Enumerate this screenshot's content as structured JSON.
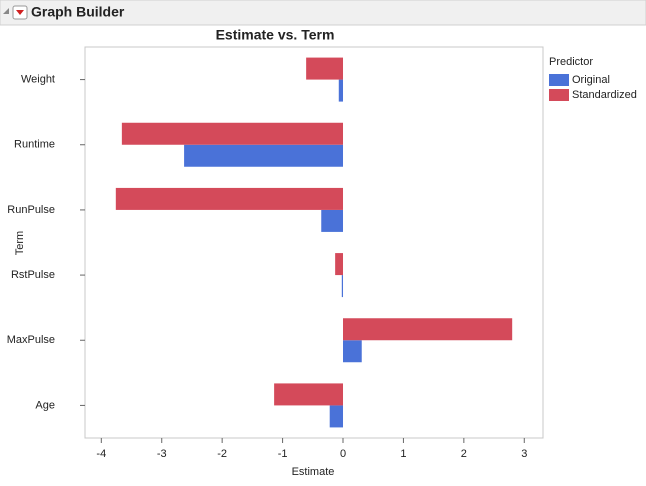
{
  "header": "Graph Builder",
  "chart_data": {
    "type": "bar",
    "orientation": "horizontal",
    "title": "Estimate vs. Term",
    "x_label": "Estimate",
    "y_label": "Term",
    "legend_title": "Predictor",
    "categories": [
      "Weight",
      "Runtime",
      "RunPulse",
      "RstPulse",
      "MaxPulse",
      "Age"
    ],
    "series": [
      {
        "name": "Original",
        "color": "#4a72d8",
        "values": [
          -0.07,
          -2.63,
          -0.36,
          -0.02,
          0.31,
          -0.22
        ]
      },
      {
        "name": "Standardized",
        "color": "#d44a5a",
        "values": [
          -0.61,
          -3.66,
          -3.76,
          -0.13,
          2.8,
          -1.14
        ]
      }
    ],
    "xlim": [
      -4.27,
      3.31
    ],
    "xticks": [
      -4,
      -3,
      -2,
      -1,
      0,
      1,
      2,
      3
    ],
    "grid": false
  }
}
